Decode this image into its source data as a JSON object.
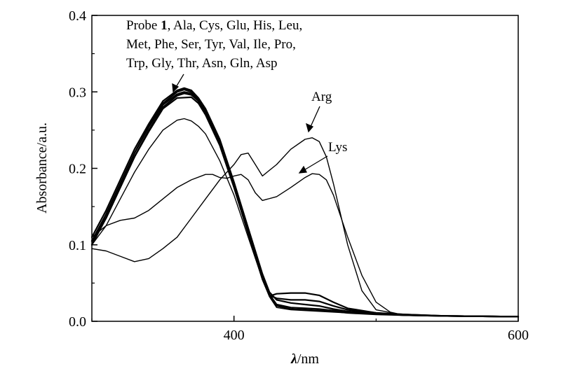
{
  "chart_data": {
    "type": "line",
    "title": "",
    "xlabel_symbol": "λ",
    "xlabel_unit": "/nm",
    "ylabel": "Absorbance/a.u.",
    "xlim": [
      300,
      600
    ],
    "ylim": [
      0,
      0.4
    ],
    "x_ticks": [
      400,
      600
    ],
    "x_tick_labels": [
      "400",
      "600"
    ],
    "y_ticks": [
      0.0,
      0.1,
      0.2,
      0.3,
      0.4
    ],
    "y_tick_labels": [
      "0.0",
      "0.1",
      "0.2",
      "0.3",
      "0.4"
    ],
    "grid": false,
    "legend": "none",
    "line_color": "#000000",
    "annotations": {
      "probe_prefix": "Probe ",
      "probe_number": "1",
      "probe_line1_rest": ", Ala, Cys, Glu, His, Leu,",
      "probe_line2": "Met, Phe, Ser, Tyr, Val, Ile, Pro,",
      "probe_line3": "Trp, Gly, Thr, Asn, Gln, Asp",
      "arg": "Arg",
      "lys": "Lys"
    },
    "series": [
      {
        "group": "probe",
        "x": [
          300,
          310,
          320,
          330,
          340,
          350,
          360,
          365,
          370,
          375,
          380,
          390,
          400,
          410,
          420,
          425,
          430,
          440,
          450,
          460,
          470,
          480,
          500,
          520,
          550,
          600
        ],
        "y": [
          0.105,
          0.14,
          0.18,
          0.22,
          0.255,
          0.285,
          0.3,
          0.303,
          0.3,
          0.29,
          0.275,
          0.235,
          0.18,
          0.12,
          0.06,
          0.035,
          0.022,
          0.018,
          0.017,
          0.016,
          0.014,
          0.012,
          0.01,
          0.008,
          0.007,
          0.006
        ]
      },
      {
        "group": "probe",
        "x": [
          300,
          310,
          320,
          330,
          340,
          350,
          360,
          365,
          370,
          375,
          380,
          390,
          400,
          410,
          420,
          425,
          430,
          440,
          450,
          460,
          470,
          480,
          500,
          520,
          550,
          600
        ],
        "y": [
          0.1,
          0.135,
          0.175,
          0.215,
          0.25,
          0.28,
          0.295,
          0.298,
          0.296,
          0.288,
          0.272,
          0.232,
          0.178,
          0.118,
          0.058,
          0.033,
          0.02,
          0.016,
          0.015,
          0.014,
          0.013,
          0.011,
          0.009,
          0.008,
          0.007,
          0.006
        ]
      },
      {
        "group": "probe",
        "x": [
          300,
          310,
          320,
          330,
          340,
          350,
          360,
          365,
          370,
          375,
          380,
          390,
          400,
          410,
          420,
          425,
          430,
          440,
          450,
          460,
          470,
          480,
          500,
          520,
          550,
          600
        ],
        "y": [
          0.11,
          0.145,
          0.185,
          0.225,
          0.258,
          0.288,
          0.302,
          0.305,
          0.302,
          0.292,
          0.278,
          0.238,
          0.182,
          0.122,
          0.062,
          0.038,
          0.028,
          0.024,
          0.022,
          0.02,
          0.016,
          0.013,
          0.01,
          0.008,
          0.007,
          0.006
        ]
      },
      {
        "group": "probe",
        "x": [
          300,
          310,
          320,
          330,
          340,
          350,
          360,
          365,
          370,
          375,
          380,
          390,
          400,
          410,
          420,
          425,
          430,
          440,
          450,
          460,
          470,
          480,
          500,
          520,
          550,
          600
        ],
        "y": [
          0.1,
          0.14,
          0.18,
          0.22,
          0.254,
          0.283,
          0.297,
          0.3,
          0.298,
          0.288,
          0.273,
          0.233,
          0.177,
          0.117,
          0.056,
          0.034,
          0.03,
          0.028,
          0.028,
          0.026,
          0.02,
          0.015,
          0.011,
          0.009,
          0.007,
          0.006
        ]
      },
      {
        "group": "probe",
        "x": [
          300,
          310,
          320,
          330,
          340,
          350,
          360,
          370,
          375,
          380,
          390,
          400,
          410,
          420,
          425,
          430,
          440,
          450,
          460,
          470,
          480,
          500,
          520,
          550,
          600
        ],
        "y": [
          0.105,
          0.135,
          0.175,
          0.215,
          0.248,
          0.278,
          0.292,
          0.293,
          0.285,
          0.27,
          0.23,
          0.175,
          0.115,
          0.055,
          0.033,
          0.036,
          0.037,
          0.037,
          0.034,
          0.025,
          0.017,
          0.011,
          0.009,
          0.007,
          0.006
        ]
      },
      {
        "group": "extra",
        "x": [
          300,
          310,
          320,
          330,
          340,
          350,
          360,
          365,
          370,
          375,
          380,
          390,
          400,
          410,
          420,
          425,
          430,
          440,
          450,
          460,
          470,
          480,
          490,
          500,
          520,
          550,
          600
        ],
        "y": [
          0.1,
          0.125,
          0.16,
          0.195,
          0.225,
          0.25,
          0.263,
          0.265,
          0.262,
          0.255,
          0.245,
          0.21,
          0.165,
          0.11,
          0.055,
          0.032,
          0.018,
          0.015,
          0.014,
          0.013,
          0.012,
          0.011,
          0.01,
          0.009,
          0.008,
          0.007,
          0.006
        ]
      },
      {
        "group": "arg",
        "x": [
          300,
          310,
          320,
          330,
          340,
          350,
          360,
          370,
          380,
          390,
          400,
          405,
          410,
          415,
          420,
          430,
          440,
          450,
          455,
          460,
          465,
          470,
          480,
          490,
          500,
          520,
          550,
          600
        ],
        "y": [
          0.095,
          0.092,
          0.085,
          0.078,
          0.082,
          0.095,
          0.11,
          0.135,
          0.16,
          0.185,
          0.205,
          0.218,
          0.22,
          0.205,
          0.19,
          0.205,
          0.225,
          0.238,
          0.24,
          0.235,
          0.215,
          0.18,
          0.1,
          0.04,
          0.015,
          0.008,
          0.007,
          0.006
        ]
      },
      {
        "group": "lys",
        "x": [
          300,
          310,
          320,
          330,
          340,
          350,
          360,
          370,
          380,
          385,
          390,
          395,
          400,
          405,
          410,
          415,
          420,
          430,
          440,
          450,
          455,
          460,
          465,
          470,
          480,
          490,
          500,
          510,
          520,
          550,
          600
        ],
        "y": [
          0.11,
          0.125,
          0.132,
          0.135,
          0.145,
          0.16,
          0.175,
          0.185,
          0.192,
          0.192,
          0.188,
          0.187,
          0.19,
          0.192,
          0.185,
          0.168,
          0.158,
          0.163,
          0.175,
          0.188,
          0.193,
          0.192,
          0.185,
          0.165,
          0.11,
          0.06,
          0.025,
          0.012,
          0.008,
          0.007,
          0.006
        ]
      }
    ]
  }
}
